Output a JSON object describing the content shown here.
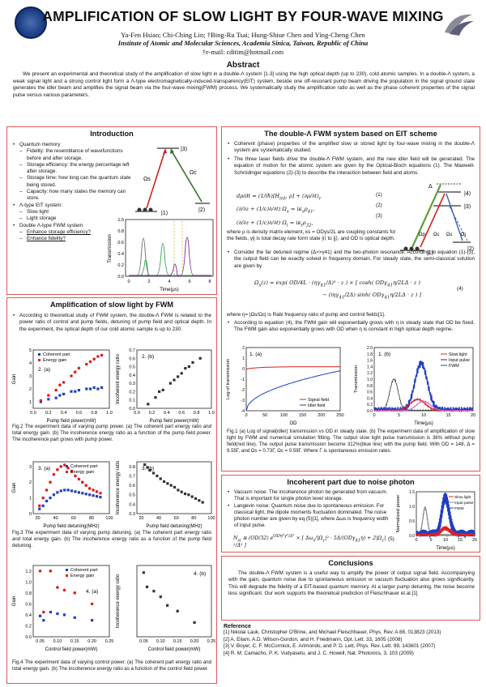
{
  "header": {
    "title": "AMPLIFICATION OF SLOW LIGHT BY FOUR-WAVE MIXING",
    "authors": "Ya-Fen Hsiao; Chi-Ching Lin; †Bing-Ru Tsai; Hung-Shiue Chen and Ying-Cheng Chen",
    "institute": "Institute of Atomic and Molecular Sciences, Academia Sinica, Taiwan, Republic of China",
    "email": "†e-mail: cditim@hotmail.com"
  },
  "abstract": {
    "heading": "Abstract",
    "text": "We present an experimental and theoretical study of the amplification of slow light in a double-Λ system [1-3] using the high optical depth (up to 230), cold atomic samples. In a double-Λ system, a weak signal light and a strong control light form a Λ-type electromagnetically-induced-transparency(EIT) system, beside one off-resonant pump beam driving the population in the signal ground state generates the idler beam and amplifies the signal beam via the four-wave mixing(FWM) process. We systematically study the amplification ratio as well as the phase coherent properties of the signal pulse versus various parameters."
  },
  "intro": {
    "heading": "Introduction",
    "items": [
      {
        "text": "Quantum memory",
        "level": 0
      },
      {
        "text": "Fidelity: the resemblance of wavefunctions before and after storage.",
        "level": 1
      },
      {
        "text": "Storage efficiency: the energy percentage left after storage.",
        "level": 1
      },
      {
        "text": "Storage time: how long can the quantum state being stored.",
        "level": 1
      },
      {
        "text": "Capacity: how many states the memory can store.",
        "level": 1
      },
      {
        "text": "Λ-type EIT system:",
        "level": 0
      },
      {
        "text": "Slow light",
        "level": 1
      },
      {
        "text": "Light storage",
        "level": 1
      },
      {
        "text": "Double Λ-type FWM system",
        "level": 0
      },
      {
        "text": "Enhance storage efficiency?",
        "level": 1
      },
      {
        "text": "Enhance fidelity?",
        "level": 1
      }
    ],
    "diagram": {
      "level3": "|3⟩",
      "level2": "|2⟩",
      "level1": "|1⟩",
      "omega_c": "Ωc",
      "omega_s": "Ωs"
    },
    "plot": {
      "ylabel": "Transmission",
      "xlabel": "Time(μs)",
      "yticks": [
        "0.0",
        "0.2",
        "0.4",
        "0.6",
        "0.8",
        "1.0"
      ],
      "xticks": [
        "0",
        "2",
        "4",
        "6",
        "8"
      ]
    }
  },
  "amp": {
    "heading": "Amplification of slow light by FWM",
    "bullet": "According to theoretical study of FWM system, the double-Λ FWM is related to the power ratio of control and pump fields, detuning of pump field and optical depth. In the experiment, the optical depth of our cold atomic sample is up to 230.",
    "fig2": {
      "a_label": "2. (a)",
      "b_label": "2. (b)",
      "legend": [
        "Coherent part",
        "Energy gain"
      ],
      "a_ylabel": "Gain",
      "b_ylabel": "Incoherent energy ratio",
      "xlabel": "Pump field power(mW)",
      "a_yticks": [
        "1",
        "2",
        "3",
        "4",
        "5"
      ],
      "b_yticks": [
        "0.0",
        "0.1",
        "0.2",
        "0.3",
        "0.4",
        "0.5",
        "0.6",
        "0.7"
      ],
      "xticks": [
        "0.0",
        "0.2",
        "0.4",
        "0.6",
        "0.8",
        "1.0"
      ],
      "caption": "Fig.2 The experiment data of varying pump power. (a) The coherent part energy ratio and total energy gain. (b) The incoherence energy ratio as a function of the pump field power. The incoherence part grows with pump power."
    },
    "fig3": {
      "a_label": "3. (a)",
      "b_label": "3. (b)",
      "legend": [
        "Coherent part",
        "Energy gain"
      ],
      "a_ylabel": "Gain",
      "b_ylabel": "Incoherence energy ratio",
      "xlabel": "Pump field detuning(MHz)",
      "a_yticks": [
        "0",
        "1",
        "2",
        "3"
      ],
      "b_yticks": [
        "0.3",
        "0.4",
        "0.5",
        "0.6",
        "0.7",
        "0.8"
      ],
      "xticks": [
        "20",
        "40",
        "60",
        "80",
        "100"
      ],
      "caption": "Fig.3 The experiment data of varying pump detuning. (a) The coherent part energy ratio and total energy gain. (b) The incoherence energy ratio as a function of the pump field detuning."
    },
    "fig4": {
      "a_label": "4. (a)",
      "b_label": "4. (b)",
      "legend": [
        "Coherent part",
        "Energy gain"
      ],
      "a_ylabel": "Gain",
      "b_ylabel": "Incoherence energy ratio",
      "xlabel": "Control field power(mW)",
      "a_yticks": [
        "0.0",
        "0.2",
        "0.4",
        "0.6",
        "0.8",
        "1.0",
        "1.2"
      ],
      "xticks": [
        "0.05",
        "0.10",
        "0.15",
        "0.20",
        "0.25"
      ],
      "caption": "Fig.4 The experiment data of varying control power. (a) The coherent part energy ratio and total energy gain. (b) The incoherence energy ratio as a function of the control field power."
    }
  },
  "double": {
    "heading": "The double-Λ FWM system based on EIT scheme",
    "b1": "Coherent (phase) properties of the amplified slow or stored light by four-wave mixing in the double-Λ system are systematically studied.",
    "b2": "The three laser fields drive the double-Λ FWM system, and the new idler field will be generated. The equation of motion for the atomic system are given by the Optical-Bloch equations (1). The Maxwell-Schrödinger equations (2)-(3) to describe the interaction between field and atoms.",
    "eq_nums": [
      "(1)",
      "(2)",
      "(3)",
      "(4)"
    ],
    "where1": "where ρ is density matrix element, κs = ODγs/2L are coupling constants for the fields, γij is total decay rate form state |i⟩ to |j⟩, and OD is optical depth.",
    "b3": "Consider the far detuned regime (Δ>>γ41) and the two-photon resonance. According to equation (1)-(3), the output field can be exactly solved in frequency domain. For steady state, the semi-classical solution are given by",
    "where2": "where η= |Ωs/Ωc| is Rabi frequency ratio of pump and control fields[1].",
    "b4": "According to equation (4), the FWM gain will exponentially grows with η in steady state that OD be fixed. The FWM gain also exponentially grows with OD when η is constant in high optical depth regime.",
    "diagram": {
      "delta": "Δ",
      "l4": "|4⟩",
      "l3": "|3⟩",
      "l2": "|2⟩",
      "l1": "|1⟩",
      "lab": [
        "Ωp",
        "Ωc",
        "Ωs",
        "Ωi"
      ]
    },
    "fig1a": {
      "label": "1. (a)",
      "ylabel": "Log of transmission",
      "xlabel": "OD",
      "legend": [
        "Signal field",
        "Idler field"
      ],
      "yticks": [
        "-4",
        "-3",
        "-2",
        "-1",
        "0",
        "1",
        "2"
      ],
      "xticks": [
        "0",
        "50",
        "100",
        "150",
        "200",
        "250"
      ]
    },
    "fig1b": {
      "label": "1. (b)",
      "ylabel": "Transmission",
      "xlabel": "Time(μs)",
      "legend": [
        "Slow light",
        "Input pulse",
        "FWM"
      ],
      "yticks": [
        "0.0",
        "0.2",
        "0.4",
        "0.6",
        "0.8",
        "1.0",
        "1.2",
        "1.4",
        "1.6",
        "1.8",
        "2.0"
      ],
      "xticks": [
        "0",
        "5",
        "10",
        "15",
        "20"
      ]
    },
    "caption": "Fig.1 (a) Log of signal(idler) transmission vs OD in steady state. (b) The experiment data of amplification of slow light by FWM and numerical simulation fitting. The output slow light pulse transmission is 36% without pump field(red line). The output pulse transmission become 312%(blue line) with the pump field. With OD = 148, Δ = 9.55Γ, and Ωs = 0.73Γ, Ωc = 0.59Γ. Where Γ is spontaneous emission rates."
  },
  "noise": {
    "heading": "Incoherent part due to noise photon",
    "items": [
      "Vacuum noise: The incoherence photon be generated from vacuum. That is important for single photon level storage.",
      "Langevin noise: Quantum noise due to spontaneous emission. For classical light, the dipole moments fluctuation dominated. The noise photon number are given by eq.(5)[1], where Δωs is frequency width of input pulse."
    ],
    "eq_num": "(5)",
    "plot": {
      "ylabel": "Normalized power",
      "xlabel": "Time(μs)",
      "legend": [
        "Slow light",
        "Input pulse",
        "FWM"
      ],
      "yticks": [
        "0.0",
        "0.5",
        "1.0",
        "1.5"
      ],
      "xticks": [
        "0",
        "5",
        "10",
        "15",
        "20"
      ]
    }
  },
  "conclusions": {
    "heading": "Conclusions",
    "text": "The double-Λ FWM system is a useful way to amplify the power of output signal field. Accompanying with the gain, quantum noise due to spontaneous emission or vacuum fluctuation also grows significantly. This will degrade the fidelity of a EIT-based quantum memory. At a larger pump detuning, the noise become less significant. Our work supports the theoretical prediction of Fleischhauer et.al.[1]"
  },
  "references": {
    "heading": "Reference",
    "items": [
      "[1] Nikolai Lauk, Christopher O'Brine, and Michael Fleischhauer, Phys. Rev. A 88, 013823 (2013)",
      "[2] A. Eilam, A.D. Wilson-Gordon, and H. Friedmann, Opt. Lett. 33, 1605 (2008)",
      "[3] V. Boyer, C. F. McCormick, E. Arimondo, and P. D. Lett, Phys. Rev. Lett. 99, 143601 (2007)",
      "[4] R. M. Camacho, P. K. Vudyasetu, and J. C. Howell, Nat. Photonics, 3, 103 (2009)"
    ]
  },
  "chart_data": [
    {
      "type": "scatter",
      "title": "2. (a)",
      "xlabel": "Pump field power(mW)",
      "ylabel": "Gain",
      "xlim": [
        0.0,
        1.0
      ],
      "ylim": [
        0.5,
        5
      ],
      "series": [
        {
          "name": "Coherent part",
          "x": [
            0.1,
            0.2,
            0.3,
            0.35,
            0.4,
            0.5,
            0.55,
            0.6,
            0.7,
            0.75,
            0.8,
            0.85,
            0.9
          ],
          "y": [
            1.0,
            1.2,
            1.3,
            1.5,
            1.6,
            1.8,
            1.8,
            1.9,
            2.0,
            2.0,
            2.1,
            2.0,
            2.1
          ]
        },
        {
          "name": "Energy gain",
          "x": [
            0.1,
            0.2,
            0.3,
            0.35,
            0.4,
            0.5,
            0.55,
            0.6,
            0.7,
            0.75,
            0.8,
            0.85,
            0.9
          ],
          "y": [
            1.1,
            1.5,
            1.9,
            2.3,
            2.5,
            3.0,
            3.3,
            3.6,
            3.9,
            4.1,
            4.3,
            4.5,
            4.6
          ]
        }
      ]
    },
    {
      "type": "scatter",
      "title": "2. (b)",
      "xlabel": "Pump field power(mW)",
      "ylabel": "Incoherent energy ratio",
      "xlim": [
        0.0,
        1.0
      ],
      "ylim": [
        0.0,
        0.7
      ],
      "series": [
        {
          "name": "Incoherent energy ratio",
          "x": [
            0.15,
            0.25,
            0.3,
            0.35,
            0.45,
            0.5,
            0.55,
            0.6,
            0.65,
            0.7,
            0.75,
            0.85
          ],
          "y": [
            0.05,
            0.13,
            0.2,
            0.22,
            0.3,
            0.34,
            0.38,
            0.42,
            0.48,
            0.5,
            0.55,
            0.6
          ]
        }
      ]
    },
    {
      "type": "scatter",
      "title": "3. (a)",
      "xlabel": "Pump field detuning(MHz)",
      "ylabel": "Gain",
      "xlim": [
        15,
        100
      ],
      "ylim": [
        0,
        3.3
      ],
      "series": [
        {
          "name": "Coherent part",
          "x": [
            22,
            26,
            30,
            34,
            38,
            42,
            46,
            50,
            54,
            58,
            62,
            66,
            70,
            74,
            78,
            82,
            86,
            90
          ],
          "y": [
            0.3,
            0.5,
            0.8,
            1.0,
            1.2,
            1.35,
            1.45,
            1.5,
            1.5,
            1.45,
            1.4,
            1.35,
            1.3,
            1.25,
            1.2,
            1.15,
            1.1,
            1.05
          ]
        },
        {
          "name": "Energy gain",
          "x": [
            22,
            26,
            30,
            34,
            38,
            42,
            46,
            50,
            54,
            58,
            62,
            66,
            70,
            74,
            78,
            82,
            86,
            90
          ],
          "y": [
            0.5,
            1.0,
            1.5,
            2.0,
            2.5,
            2.8,
            3.0,
            3.1,
            2.9,
            2.7,
            2.4,
            2.2,
            2.0,
            1.8,
            1.6,
            1.5,
            1.4,
            1.3
          ]
        }
      ]
    },
    {
      "type": "scatter",
      "title": "3. (b)",
      "xlabel": "Pump field detuning(MHz)",
      "ylabel": "Incoherence energy ratio",
      "xlim": [
        15,
        100
      ],
      "ylim": [
        0.3,
        0.85
      ],
      "series": [
        {
          "name": "Incoherence energy ratio",
          "x": [
            24,
            27,
            30,
            34,
            38,
            42,
            46,
            50,
            54,
            58,
            62,
            66,
            70,
            74,
            78,
            82,
            86,
            90
          ],
          "y": [
            0.82,
            0.79,
            0.76,
            0.73,
            0.7,
            0.67,
            0.64,
            0.62,
            0.6,
            0.58,
            0.55,
            0.53,
            0.51,
            0.5,
            0.48,
            0.46,
            0.44,
            0.42
          ]
        }
      ]
    },
    {
      "type": "scatter",
      "title": "4. (a)",
      "xlabel": "Control field power(mW)",
      "ylabel": "Gain",
      "xlim": [
        0.03,
        0.25
      ],
      "ylim": [
        0.0,
        1.3
      ],
      "series": [
        {
          "name": "Coherent part",
          "x": [
            0.05,
            0.06,
            0.08,
            0.1,
            0.12,
            0.15,
            0.2
          ],
          "y": [
            0.38,
            0.3,
            0.45,
            0.42,
            0.4,
            0.35,
            0.3
          ]
        },
        {
          "name": "Energy gain",
          "x": [
            0.05,
            0.06,
            0.08,
            0.1,
            0.12,
            0.15,
            0.2
          ],
          "y": [
            1.2,
            0.45,
            1.2,
            0.9,
            0.85,
            0.8,
            0.6
          ]
        }
      ]
    },
    {
      "type": "scatter",
      "title": "4. (b)",
      "xlabel": "Control field power(mW)",
      "ylabel": "Incoherence energy ratio",
      "xlim": [
        0.03,
        0.25
      ],
      "ylim": [
        0.4,
        0.9
      ],
      "series": [
        {
          "name": "Incoherence energy ratio",
          "x": [
            0.05,
            0.06,
            0.08,
            0.1,
            0.12,
            0.15,
            0.2
          ],
          "y": [
            0.85,
            0.75,
            0.72,
            0.68,
            0.62,
            0.58,
            0.5
          ]
        }
      ]
    }
  ]
}
